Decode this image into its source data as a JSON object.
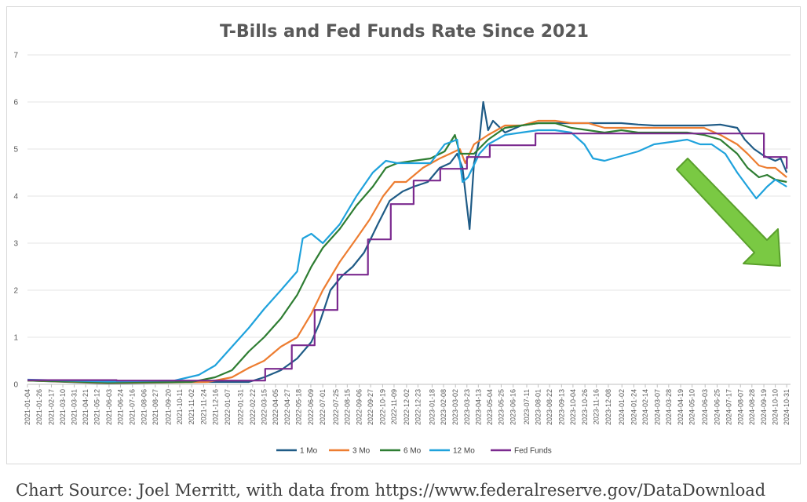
{
  "source_note": "Chart Source: Joel Merritt, with data from https://www.federalreserve.gov/DataDownload",
  "chart_data": {
    "type": "line",
    "title": "T-Bills and Fed Funds Rate Since 2021",
    "xlabel": "",
    "ylabel": "",
    "ylim": [
      0,
      7
    ],
    "yticks": [
      0,
      1,
      2,
      3,
      4,
      5,
      6,
      7
    ],
    "grid": "horizontal",
    "legend_position": "bottom",
    "x_tick_labels": [
      "2021-01-04",
      "2021-01-26",
      "2021-02-17",
      "2021-03-10",
      "2021-03-31",
      "2021-04-21",
      "2021-05-12",
      "2021-06-03",
      "2021-06-24",
      "2021-07-16",
      "2021-08-06",
      "2021-08-27",
      "2021-09-20",
      "2021-10-11",
      "2021-11-02",
      "2021-11-24",
      "2021-12-16",
      "2022-01-07",
      "2022-01-31",
      "2022-02-22",
      "2022-03-15",
      "2022-04-05",
      "2022-04-27",
      "2022-05-18",
      "2022-06-09",
      "2022-07-01",
      "2022-07-25",
      "2022-08-15",
      "2022-09-06",
      "2022-09-27",
      "2022-10-19",
      "2022-11-09",
      "2022-12-02",
      "2022-12-23",
      "2023-01-18",
      "2023-02-08",
      "2023-03-02",
      "2023-03-23",
      "2023-04-13",
      "2023-05-04",
      "2023-05-25",
      "2023-06-16",
      "2023-07-11",
      "2023-08-01",
      "2023-08-22",
      "2023-09-13",
      "2023-10-04",
      "2023-10-26",
      "2023-11-16",
      "2023-12-08",
      "2024-01-02",
      "2024-01-24",
      "2024-02-14",
      "2024-03-07",
      "2024-03-28",
      "2024-04-19",
      "2024-05-10",
      "2024-06-03",
      "2024-06-25",
      "2024-07-17",
      "2024-08-07",
      "2024-08-28",
      "2024-09-19",
      "2024-10-10",
      "2024-10-31"
    ],
    "series": [
      {
        "name": "1 Mo",
        "color": "#1f5b86",
        "x": [
          "2021-01-04",
          "2021-06-01",
          "2021-12-01",
          "2022-02-15",
          "2022-03-15",
          "2022-04-15",
          "2022-05-15",
          "2022-06-10",
          "2022-06-25",
          "2022-07-15",
          "2022-08-05",
          "2022-08-25",
          "2022-09-15",
          "2022-10-10",
          "2022-11-01",
          "2022-11-25",
          "2022-12-15",
          "2023-01-10",
          "2023-02-01",
          "2023-02-20",
          "2023-03-05",
          "2023-03-15",
          "2023-03-28",
          "2023-04-05",
          "2023-04-15",
          "2023-04-22",
          "2023-05-01",
          "2023-05-10",
          "2023-06-01",
          "2023-07-01",
          "2023-08-01",
          "2023-09-01",
          "2023-10-01",
          "2023-11-01",
          "2023-12-01",
          "2024-01-01",
          "2024-02-01",
          "2024-03-01",
          "2024-04-01",
          "2024-05-01",
          "2024-06-01",
          "2024-07-01",
          "2024-08-01",
          "2024-08-15",
          "2024-09-01",
          "2024-09-20",
          "2024-10-10",
          "2024-10-20",
          "2024-10-31"
        ],
        "y": [
          0.08,
          0.02,
          0.05,
          0.05,
          0.15,
          0.3,
          0.55,
          0.9,
          1.3,
          2.0,
          2.3,
          2.5,
          2.8,
          3.4,
          3.9,
          4.1,
          4.2,
          4.3,
          4.6,
          4.7,
          4.9,
          4.6,
          3.3,
          4.7,
          5.2,
          6.0,
          5.4,
          5.6,
          5.35,
          5.5,
          5.55,
          5.55,
          5.55,
          5.55,
          5.55,
          5.55,
          5.52,
          5.5,
          5.5,
          5.5,
          5.5,
          5.52,
          5.45,
          5.2,
          5.0,
          4.85,
          4.75,
          4.8,
          4.5
        ]
      },
      {
        "name": "3 Mo",
        "color": "#ed7d31",
        "x": [
          "2021-01-04",
          "2021-06-01",
          "2021-12-01",
          "2022-01-15",
          "2022-02-15",
          "2022-03-15",
          "2022-04-15",
          "2022-05-15",
          "2022-06-10",
          "2022-07-01",
          "2022-08-01",
          "2022-09-01",
          "2022-09-25",
          "2022-10-20",
          "2022-11-10",
          "2022-12-01",
          "2023-01-01",
          "2023-02-01",
          "2023-02-20",
          "2023-03-10",
          "2023-03-20",
          "2023-04-05",
          "2023-05-01",
          "2023-06-01",
          "2023-07-01",
          "2023-08-01",
          "2023-09-01",
          "2023-10-01",
          "2023-11-01",
          "2023-12-01",
          "2024-01-01",
          "2024-02-01",
          "2024-03-01",
          "2024-04-01",
          "2024-05-01",
          "2024-06-01",
          "2024-07-01",
          "2024-08-01",
          "2024-08-20",
          "2024-09-10",
          "2024-09-25",
          "2024-10-10",
          "2024-10-31"
        ],
        "y": [
          0.08,
          0.03,
          0.05,
          0.15,
          0.35,
          0.5,
          0.8,
          1.0,
          1.5,
          2.0,
          2.6,
          3.1,
          3.5,
          4.0,
          4.3,
          4.3,
          4.6,
          4.8,
          4.9,
          5.0,
          4.7,
          5.1,
          5.3,
          5.5,
          5.5,
          5.6,
          5.6,
          5.55,
          5.55,
          5.45,
          5.45,
          5.45,
          5.45,
          5.45,
          5.45,
          5.45,
          5.3,
          5.1,
          4.9,
          4.65,
          4.6,
          4.6,
          4.4
        ]
      },
      {
        "name": "6 Mo",
        "color": "#2e7d32",
        "x": [
          "2021-01-04",
          "2021-06-01",
          "2021-11-01",
          "2021-12-15",
          "2022-01-15",
          "2022-02-15",
          "2022-03-15",
          "2022-04-15",
          "2022-05-15",
          "2022-06-10",
          "2022-07-01",
          "2022-08-01",
          "2022-09-01",
          "2022-10-01",
          "2022-10-25",
          "2022-11-15",
          "2022-12-15",
          "2023-01-15",
          "2023-02-10",
          "2023-03-01",
          "2023-03-10",
          "2023-03-20",
          "2023-04-05",
          "2023-05-01",
          "2023-06-01",
          "2023-07-01",
          "2023-08-01",
          "2023-09-01",
          "2023-10-01",
          "2023-11-01",
          "2023-12-01",
          "2024-01-01",
          "2024-02-01",
          "2024-03-01",
          "2024-04-01",
          "2024-05-01",
          "2024-06-01",
          "2024-07-01",
          "2024-08-01",
          "2024-08-20",
          "2024-09-10",
          "2024-09-25",
          "2024-10-10",
          "2024-10-31"
        ],
        "y": [
          0.08,
          0.04,
          0.05,
          0.15,
          0.3,
          0.7,
          1.0,
          1.4,
          1.9,
          2.5,
          2.9,
          3.3,
          3.8,
          4.2,
          4.6,
          4.7,
          4.75,
          4.8,
          4.95,
          5.3,
          4.9,
          4.9,
          4.9,
          5.2,
          5.45,
          5.5,
          5.55,
          5.55,
          5.45,
          5.4,
          5.35,
          5.4,
          5.35,
          5.35,
          5.35,
          5.35,
          5.3,
          5.2,
          4.9,
          4.6,
          4.4,
          4.45,
          4.35,
          4.3
        ]
      },
      {
        "name": "12 Mo",
        "color": "#1fa2dc",
        "x": [
          "2021-01-04",
          "2021-06-01",
          "2021-10-01",
          "2021-11-15",
          "2021-12-15",
          "2022-01-15",
          "2022-02-15",
          "2022-03-15",
          "2022-04-15",
          "2022-05-15",
          "2022-05-25",
          "2022-06-10",
          "2022-07-01",
          "2022-08-01",
          "2022-09-01",
          "2022-10-01",
          "2022-10-25",
          "2022-11-15",
          "2022-12-15",
          "2023-01-15",
          "2023-02-10",
          "2023-03-05",
          "2023-03-15",
          "2023-03-25",
          "2023-04-15",
          "2023-05-01",
          "2023-06-01",
          "2023-07-01",
          "2023-08-01",
          "2023-09-01",
          "2023-10-01",
          "2023-10-25",
          "2023-11-10",
          "2023-12-01",
          "2024-01-01",
          "2024-02-01",
          "2024-03-01",
          "2024-04-01",
          "2024-05-01",
          "2024-05-25",
          "2024-06-15",
          "2024-07-10",
          "2024-08-01",
          "2024-08-20",
          "2024-09-05",
          "2024-09-25",
          "2024-10-10",
          "2024-10-31"
        ],
        "y": [
          0.1,
          0.06,
          0.08,
          0.2,
          0.4,
          0.8,
          1.2,
          1.6,
          2.0,
          2.4,
          3.1,
          3.2,
          3.0,
          3.4,
          4.0,
          4.5,
          4.75,
          4.7,
          4.7,
          4.7,
          5.1,
          5.2,
          4.3,
          4.4,
          4.9,
          5.1,
          5.3,
          5.35,
          5.4,
          5.4,
          5.35,
          5.1,
          4.8,
          4.75,
          4.85,
          4.95,
          5.1,
          5.15,
          5.2,
          5.1,
          5.1,
          4.9,
          4.5,
          4.2,
          3.95,
          4.2,
          4.35,
          4.2
        ]
      },
      {
        "name": "Fed Funds",
        "color": "#7b2a8f",
        "step": true,
        "x": [
          "2021-01-04",
          "2021-06-17",
          "2022-03-17",
          "2022-05-05",
          "2022-06-16",
          "2022-07-28",
          "2022-09-22",
          "2022-11-03",
          "2022-12-15",
          "2023-02-02",
          "2023-03-23",
          "2023-05-04",
          "2023-07-27",
          "2024-09-19",
          "2024-10-31"
        ],
        "y": [
          0.09,
          0.08,
          0.33,
          0.83,
          1.58,
          2.33,
          3.08,
          3.83,
          4.33,
          4.58,
          4.83,
          5.08,
          5.33,
          4.83,
          4.58
        ]
      }
    ]
  }
}
